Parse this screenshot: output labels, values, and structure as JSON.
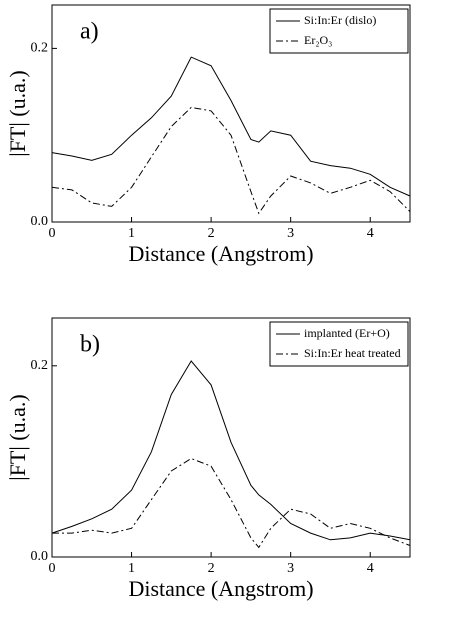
{
  "chart_data": [
    {
      "type": "line",
      "annotation": "a)",
      "xlabel": "Distance (Angstrom)",
      "ylabel": "|FT| (u.a.)",
      "x": [
        0,
        0.25,
        0.5,
        0.75,
        1,
        1.25,
        1.5,
        1.75,
        2,
        2.25,
        2.5,
        2.6,
        2.75,
        3,
        3.25,
        3.5,
        3.75,
        4,
        4.25,
        4.5
      ],
      "series": [
        {
          "name": "Si:In:Er (dislo)",
          "color": "#000000",
          "dash": "solid",
          "values": [
            0.08,
            0.076,
            0.071,
            0.078,
            0.1,
            0.12,
            0.145,
            0.19,
            0.18,
            0.14,
            0.095,
            0.092,
            0.105,
            0.1,
            0.07,
            0.065,
            0.062,
            0.055,
            0.04,
            0.03
          ]
        },
        {
          "name": "Er₂O₃",
          "color": "#000000",
          "dash": "dashdot",
          "values": [
            0.04,
            0.037,
            0.022,
            0.018,
            0.04,
            0.075,
            0.11,
            0.132,
            0.128,
            0.1,
            0.035,
            0.01,
            0.03,
            0.053,
            0.045,
            0.033,
            0.04,
            0.048,
            0.035,
            0.012
          ]
        }
      ],
      "xlim": [
        0,
        4.5
      ],
      "xticks": [
        0,
        1,
        2,
        3,
        4
      ],
      "ylim": [
        0,
        0.25
      ],
      "yticks": [
        {
          "value": 0,
          "label": "0.0"
        },
        0.2
      ],
      "legend": "upper right"
    },
    {
      "type": "line",
      "annotation": "b)",
      "xlabel": "Distance (Angstrom)",
      "ylabel": "|FT| (u.a.)",
      "x": [
        0,
        0.25,
        0.5,
        0.75,
        1,
        1.25,
        1.5,
        1.75,
        2,
        2.25,
        2.5,
        2.6,
        2.75,
        3,
        3.25,
        3.5,
        3.75,
        4,
        4.25,
        4.5
      ],
      "series": [
        {
          "name": "implanted (Er+O)",
          "color": "#000000",
          "dash": "solid",
          "values": [
            0.025,
            0.032,
            0.04,
            0.05,
            0.07,
            0.11,
            0.17,
            0.205,
            0.18,
            0.12,
            0.075,
            0.065,
            0.055,
            0.035,
            0.025,
            0.018,
            0.02,
            0.025,
            0.022,
            0.018
          ]
        },
        {
          "name": "Si:In:Er heat treated",
          "color": "#000000",
          "dash": "dashdot",
          "values": [
            0.025,
            0.025,
            0.028,
            0.025,
            0.03,
            0.06,
            0.09,
            0.103,
            0.095,
            0.06,
            0.02,
            0.01,
            0.03,
            0.05,
            0.045,
            0.03,
            0.035,
            0.03,
            0.02,
            0.012
          ]
        }
      ],
      "xlim": [
        0,
        4.5
      ],
      "xticks": [
        0,
        1,
        2,
        3,
        4
      ],
      "ylim": [
        0,
        0.25
      ],
      "yticks": [
        {
          "value": 0,
          "label": "0.0"
        },
        0.2
      ],
      "legend": "upper right"
    }
  ]
}
